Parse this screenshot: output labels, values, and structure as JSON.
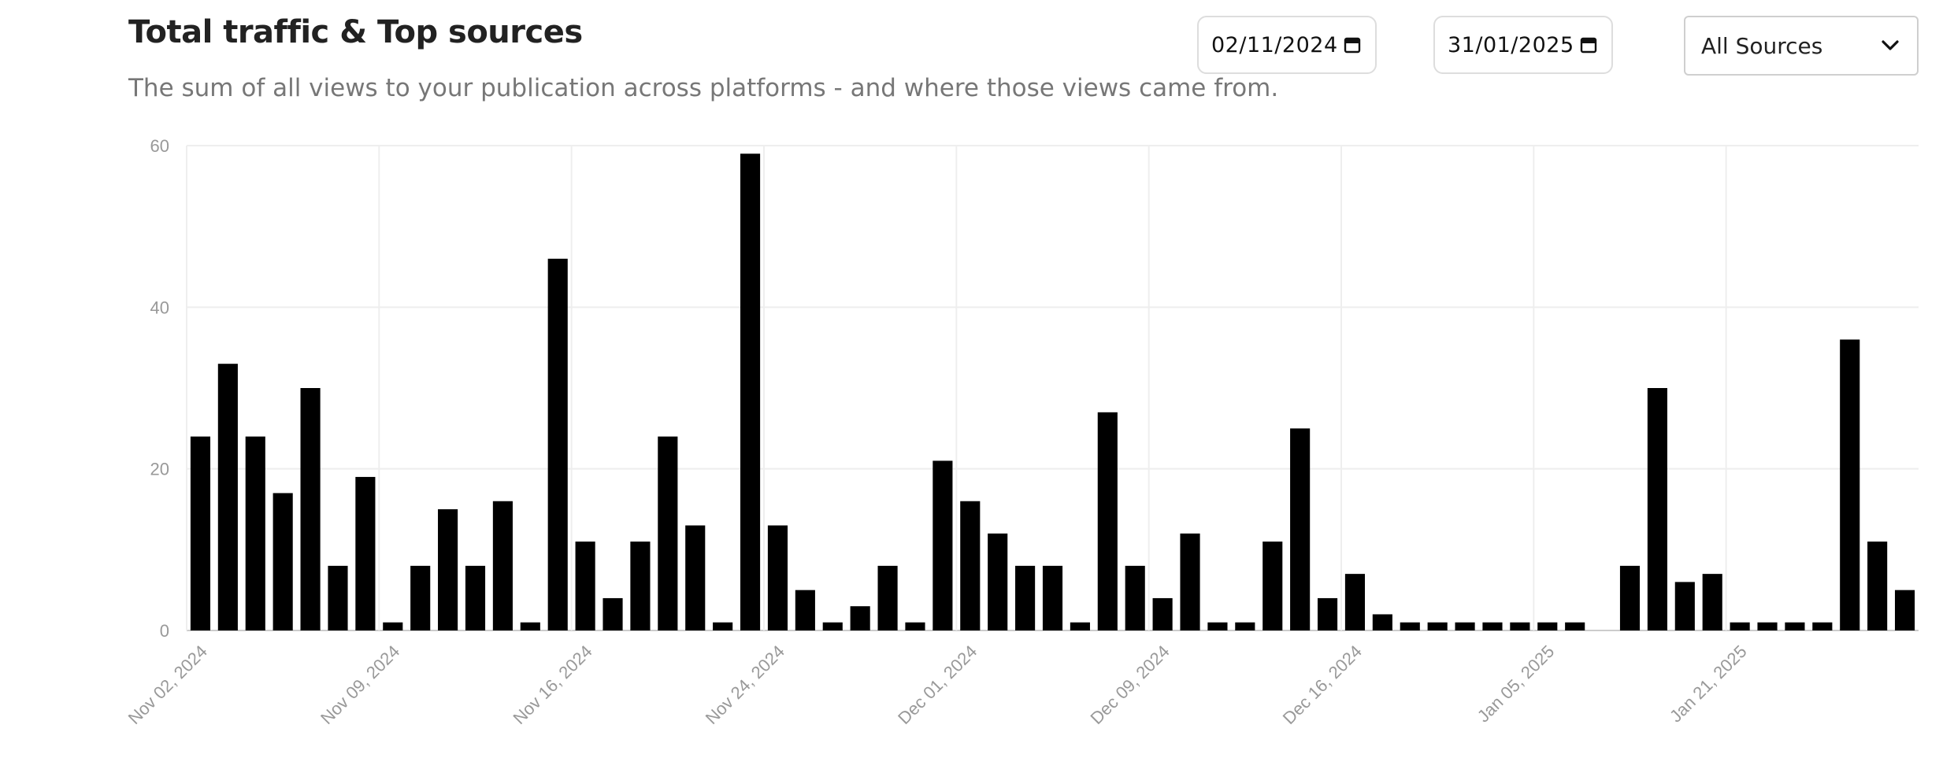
{
  "header": {
    "title": "Total traffic & Top sources",
    "subtitle": "The sum of all views to your publication across platforms - and where those views came from."
  },
  "filters": {
    "start_date": "02/11/2024",
    "end_date": "31/01/2025",
    "source_select": "All Sources"
  },
  "chart_data": {
    "type": "bar",
    "title": "",
    "xlabel": "",
    "ylabel": "",
    "ylim": [
      0,
      60
    ],
    "yticks": [
      0,
      20,
      40,
      60
    ],
    "grid": true,
    "bar_color": "#000000",
    "x_tick_labels": [
      {
        "label": "Nov 02, 2024",
        "index": 0
      },
      {
        "label": "Nov 09, 2024",
        "index": 7
      },
      {
        "label": "Nov 16, 2024",
        "index": 14
      },
      {
        "label": "Nov 24, 2024",
        "index": 21
      },
      {
        "label": "Dec 01, 2024",
        "index": 28
      },
      {
        "label": "Dec 09, 2024",
        "index": 35
      },
      {
        "label": "Dec 16, 2024",
        "index": 42
      },
      {
        "label": "Jan 05, 2025",
        "index": 49
      },
      {
        "label": "Jan 21, 2025",
        "index": 56
      }
    ],
    "values": [
      24,
      33,
      24,
      17,
      30,
      8,
      19,
      1,
      8,
      15,
      8,
      16,
      1,
      46,
      11,
      4,
      11,
      24,
      13,
      1,
      59,
      13,
      5,
      1,
      3,
      8,
      1,
      21,
      16,
      12,
      8,
      8,
      1,
      27,
      8,
      4,
      12,
      1,
      1,
      11,
      25,
      4,
      7,
      2,
      1,
      1,
      1,
      1,
      1,
      1,
      1,
      0,
      8,
      30,
      6,
      7,
      1,
      1,
      1,
      1,
      36,
      11,
      5
    ]
  }
}
